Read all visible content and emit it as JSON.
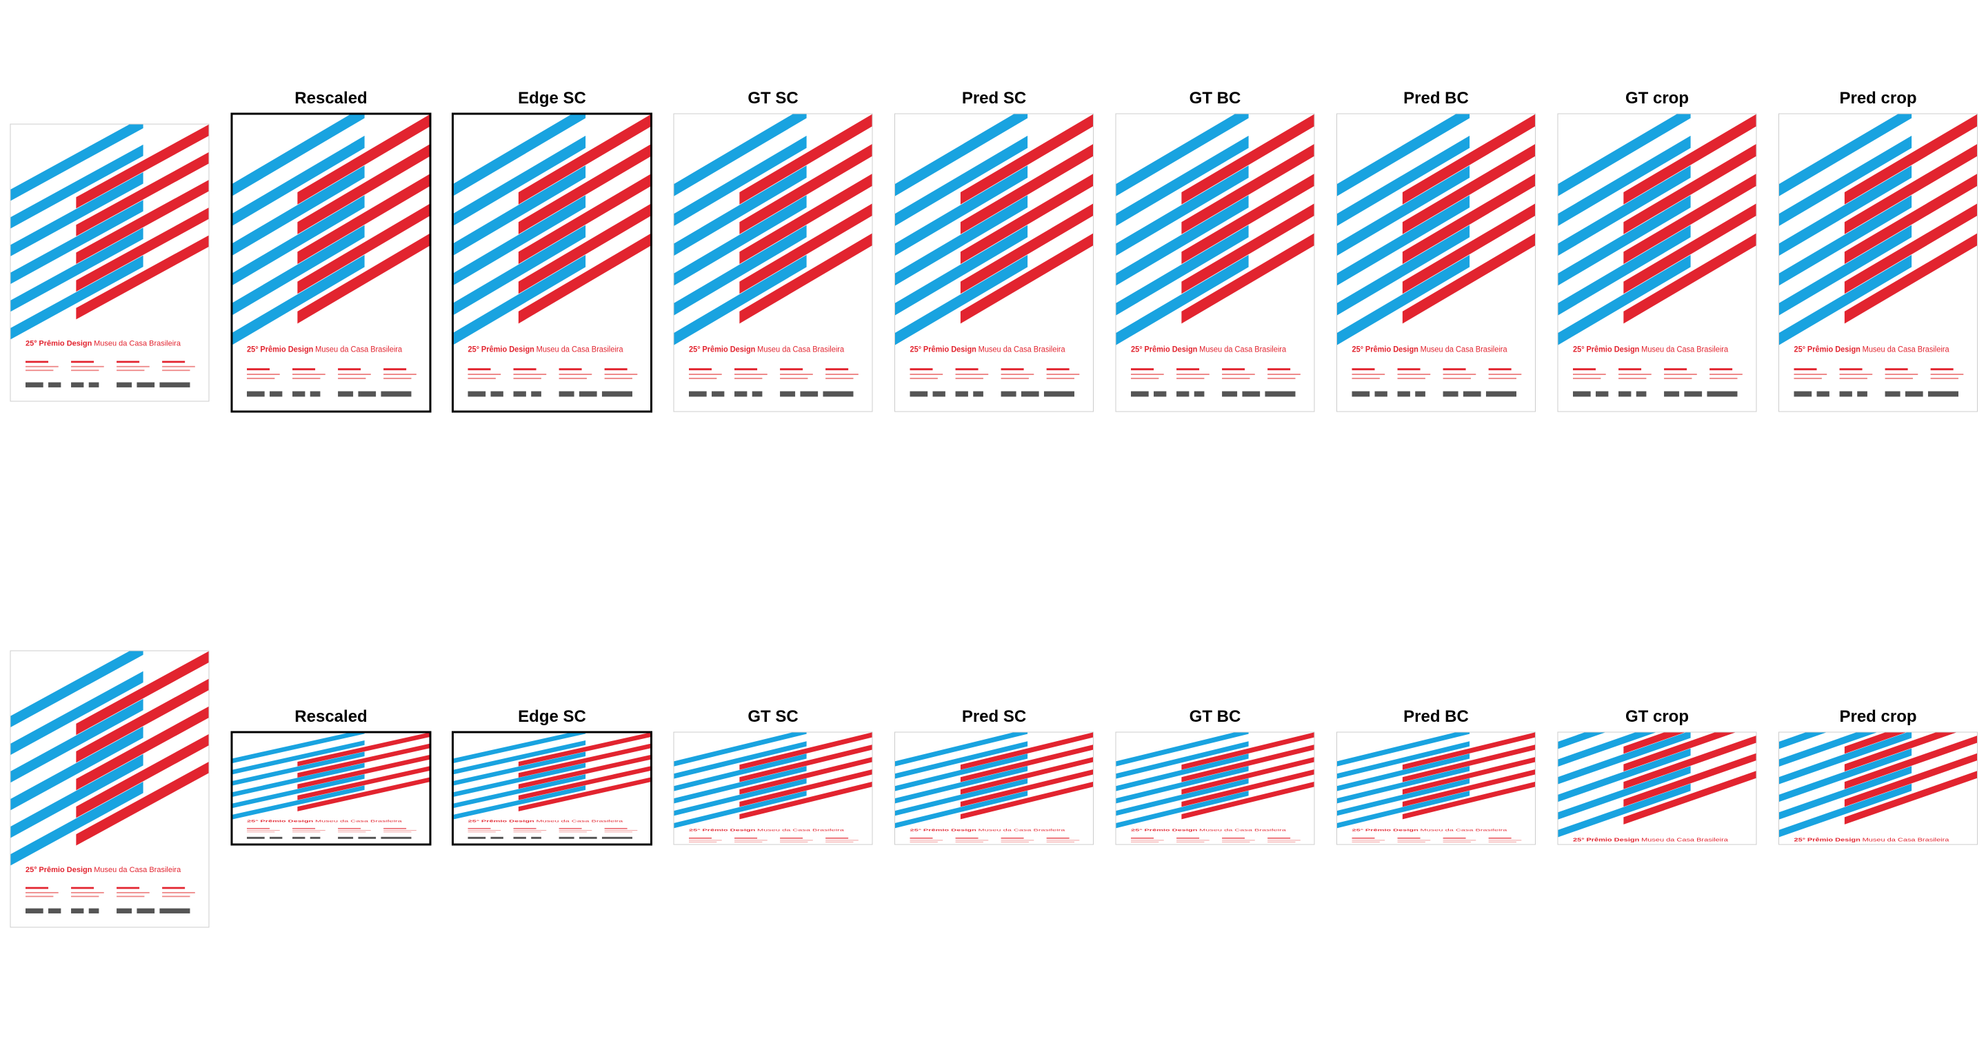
{
  "rows": [
    {
      "titles": [
        "Rescaled",
        "Edge SC",
        "GT SC",
        "Pred SC",
        "GT BC",
        "Pred BC",
        "GT crop",
        "Pred crop"
      ]
    },
    {
      "titles": [
        "Rescaled",
        "Edge SC",
        "GT SC",
        "Pred SC",
        "GT BC",
        "Pred BC",
        "GT crop",
        "Pred crop"
      ]
    }
  ],
  "poster_text": {
    "number": "25°",
    "bold": "Prêmio Design",
    "regular": "Museu da Casa Brasileira"
  }
}
